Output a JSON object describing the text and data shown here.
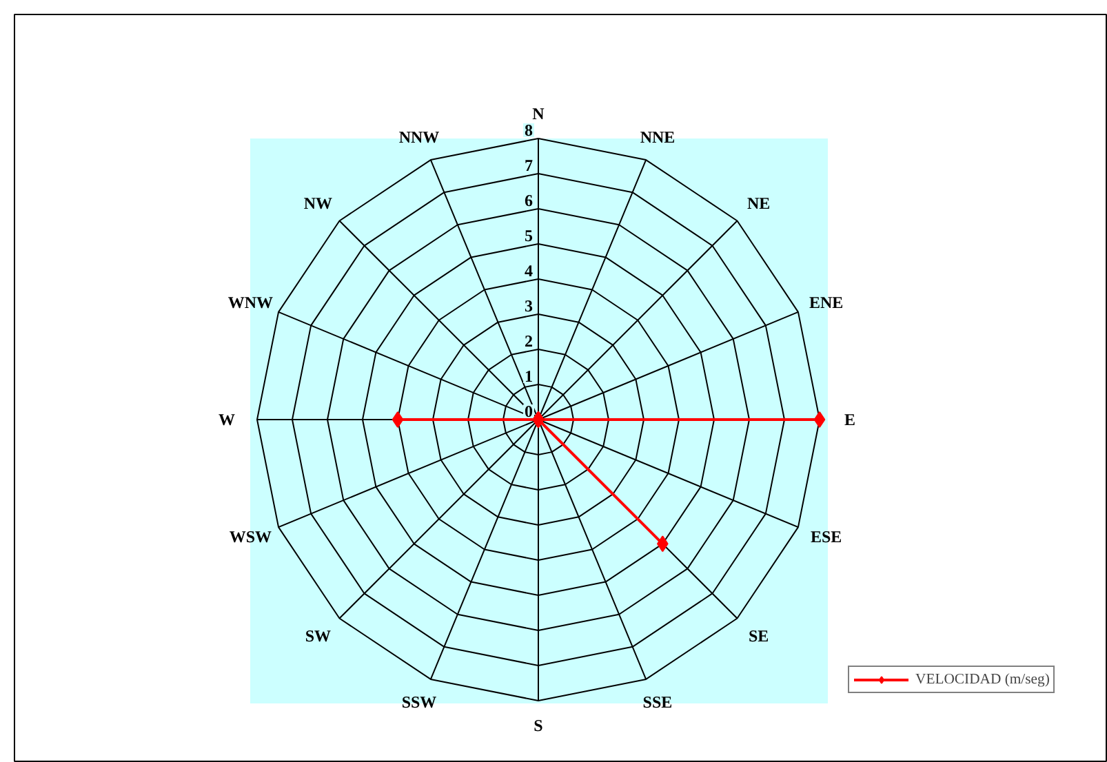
{
  "chart_data": {
    "type": "radar",
    "categories": [
      "N",
      "NNE",
      "NE",
      "ENE",
      "E",
      "ESE",
      "SE",
      "SSE",
      "S",
      "SSW",
      "SW",
      "WSW",
      "W",
      "WNW",
      "NW",
      "NNW"
    ],
    "series": [
      {
        "name": "VELOCIDAD (m/seg)",
        "color": "#ff0000",
        "values": [
          0,
          0,
          0,
          0,
          8,
          0,
          5,
          0,
          0,
          0,
          0,
          0,
          4,
          0,
          0,
          0
        ]
      }
    ],
    "ylim": [
      0,
      8
    ],
    "yticks": [
      0,
      1,
      2,
      3,
      4,
      5,
      6,
      7,
      8
    ],
    "grid": true,
    "legend": "bottom right",
    "marker": "diamond",
    "line_style": "solid"
  }
}
